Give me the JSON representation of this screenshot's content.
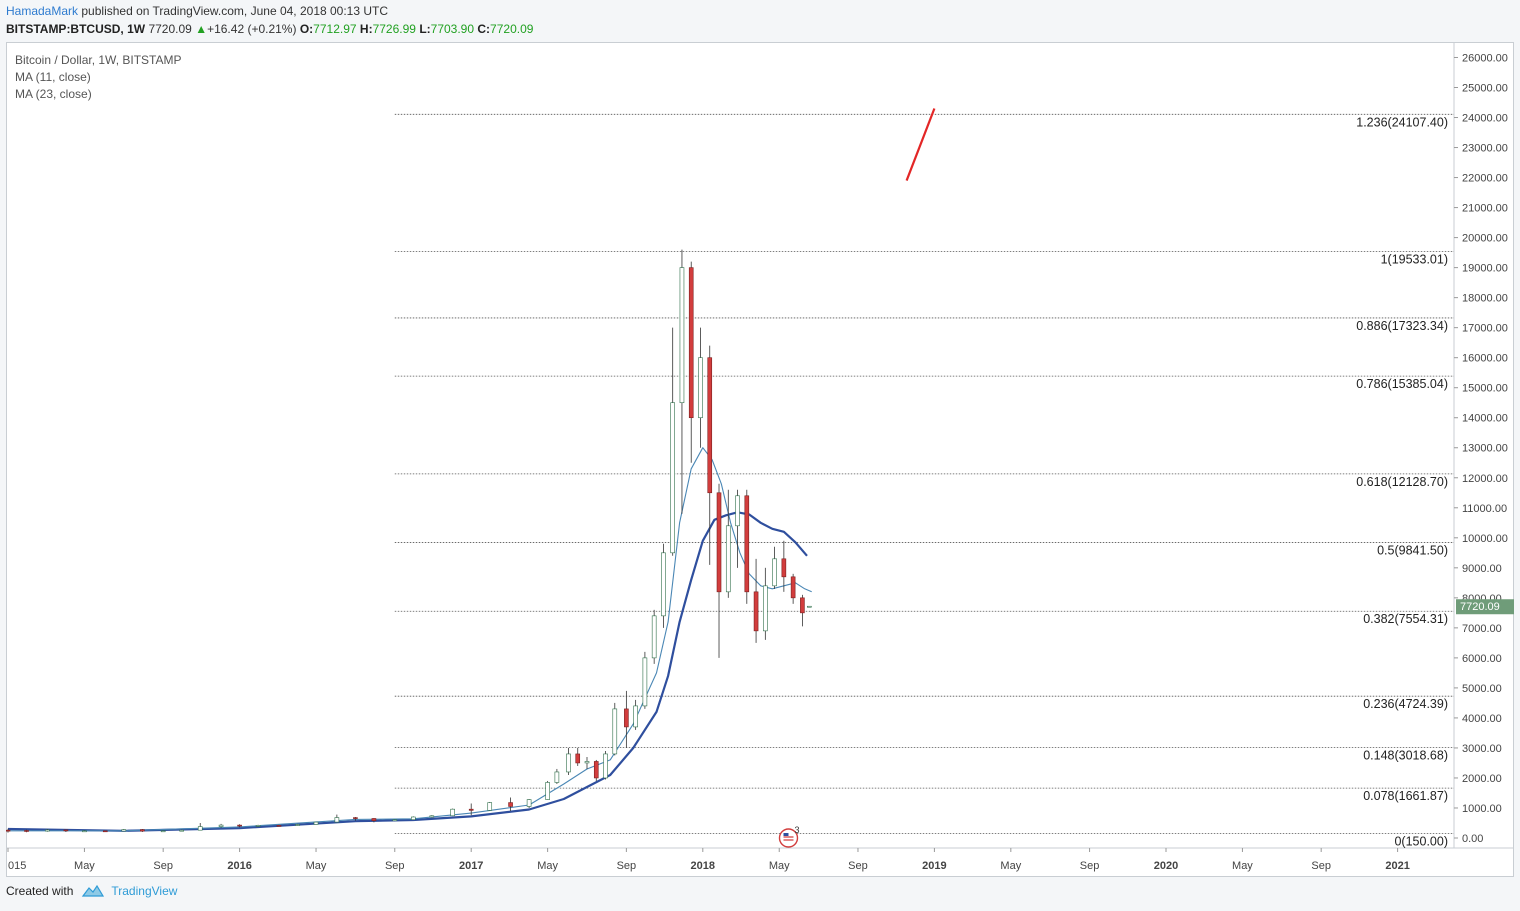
{
  "header": {
    "author": "HamadaMark",
    "published": "published on TradingView.com, June 04, 2018 00:13 UTC",
    "symbol": "BITSTAMP:BTCUSD, 1W",
    "last": "7720.09",
    "change": "+16.42 (+0.21%)",
    "o_label": "O:",
    "o_value": "7712.97",
    "h_label": "H:",
    "h_value": "7726.99",
    "l_label": "L:",
    "l_value": "7703.90",
    "c_label": "C:",
    "c_value": "7720.09"
  },
  "legend": {
    "title": "Bitcoin / Dollar, 1W, BITSTAMP",
    "ma1": "MA (11, close)",
    "ma2": "MA (23, close)"
  },
  "footer": {
    "created_with": "Created with",
    "brand": "TradingView"
  },
  "colors": {
    "up_candle": "#2f9a6a",
    "down_candle": "#d23d3d",
    "ma_fast": "#4a87b5",
    "ma_slow": "#2f4f9e",
    "fib_line": "#555555",
    "trend_line": "#e32626",
    "price_tag": "#6f9c79"
  },
  "chart_data": {
    "type": "candlestick",
    "symbol": "BITSTAMP:BTCUSD",
    "timeframe": "1W",
    "ylim": [
      0,
      26500
    ],
    "price_axis_ticks": [
      0,
      1000,
      2000,
      3000,
      4000,
      5000,
      6000,
      7000,
      8000,
      9000,
      10000,
      11000,
      12000,
      13000,
      14000,
      15000,
      16000,
      17000,
      18000,
      19000,
      20000,
      21000,
      22000,
      23000,
      24000,
      25000,
      26000
    ],
    "time_axis_labels": [
      "015",
      "May",
      "Sep",
      "2016",
      "May",
      "Sep",
      "2017",
      "May",
      "Sep",
      "2018",
      "May",
      "Sep",
      "2019",
      "May",
      "Sep",
      "2020",
      "May",
      "Sep",
      "2021"
    ],
    "time_axis_bold": [
      "2016",
      "2017",
      "2018",
      "2019",
      "2020",
      "2021"
    ],
    "time_axis_x": [
      2015.0,
      2015.33,
      2015.67,
      2016.0,
      2016.33,
      2016.67,
      2017.0,
      2017.33,
      2017.67,
      2018.0,
      2018.33,
      2018.67,
      2019.0,
      2019.33,
      2019.67,
      2020.0,
      2020.33,
      2020.67,
      2021.0
    ],
    "last_price": 7720.09,
    "fib_levels": [
      {
        "ratio": "1.236",
        "price": 24107.4
      },
      {
        "ratio": "1",
        "price": 19533.01
      },
      {
        "ratio": "0.886",
        "price": 17323.34
      },
      {
        "ratio": "0.786",
        "price": 15385.04
      },
      {
        "ratio": "0.618",
        "price": 12128.7
      },
      {
        "ratio": "0.5",
        "price": 9841.5
      },
      {
        "ratio": "0.382",
        "price": 7554.31
      },
      {
        "ratio": "0.236",
        "price": 4724.39
      },
      {
        "ratio": "0.148",
        "price": 3018.68
      },
      {
        "ratio": "0.078",
        "price": 1661.87
      },
      {
        "ratio": "0",
        "price": 150.0
      }
    ],
    "fib_start_x": 2016.67,
    "trend_line": {
      "x": [
        2018.88,
        2019.0
      ],
      "y": [
        21900,
        24300
      ]
    },
    "event_marker": {
      "x": 2018.37,
      "count": "3"
    },
    "candles": [
      {
        "x": 2015.0,
        "o": 260,
        "h": 310,
        "l": 180,
        "c": 250
      },
      {
        "x": 2015.08,
        "o": 250,
        "h": 280,
        "l": 190,
        "c": 230
      },
      {
        "x": 2015.17,
        "o": 230,
        "h": 300,
        "l": 210,
        "c": 270
      },
      {
        "x": 2015.25,
        "o": 270,
        "h": 280,
        "l": 200,
        "c": 240
      },
      {
        "x": 2015.33,
        "o": 240,
        "h": 260,
        "l": 220,
        "c": 240
      },
      {
        "x": 2015.42,
        "o": 240,
        "h": 250,
        "l": 220,
        "c": 230
      },
      {
        "x": 2015.5,
        "o": 230,
        "h": 300,
        "l": 220,
        "c": 280
      },
      {
        "x": 2015.58,
        "o": 280,
        "h": 300,
        "l": 200,
        "c": 230
      },
      {
        "x": 2015.67,
        "o": 230,
        "h": 250,
        "l": 220,
        "c": 240
      },
      {
        "x": 2015.75,
        "o": 240,
        "h": 280,
        "l": 230,
        "c": 260
      },
      {
        "x": 2015.83,
        "o": 260,
        "h": 500,
        "l": 250,
        "c": 380
      },
      {
        "x": 2015.92,
        "o": 380,
        "h": 470,
        "l": 340,
        "c": 430
      },
      {
        "x": 2016.0,
        "o": 430,
        "h": 460,
        "l": 360,
        "c": 410
      },
      {
        "x": 2016.08,
        "o": 410,
        "h": 440,
        "l": 370,
        "c": 420
      },
      {
        "x": 2016.17,
        "o": 420,
        "h": 440,
        "l": 400,
        "c": 415
      },
      {
        "x": 2016.25,
        "o": 415,
        "h": 470,
        "l": 410,
        "c": 450
      },
      {
        "x": 2016.33,
        "o": 450,
        "h": 540,
        "l": 440,
        "c": 530
      },
      {
        "x": 2016.42,
        "o": 530,
        "h": 780,
        "l": 520,
        "c": 680
      },
      {
        "x": 2016.5,
        "o": 680,
        "h": 700,
        "l": 580,
        "c": 650
      },
      {
        "x": 2016.58,
        "o": 650,
        "h": 660,
        "l": 520,
        "c": 575
      },
      {
        "x": 2016.67,
        "o": 575,
        "h": 620,
        "l": 560,
        "c": 610
      },
      {
        "x": 2016.75,
        "o": 610,
        "h": 720,
        "l": 600,
        "c": 700
      },
      {
        "x": 2016.83,
        "o": 700,
        "h": 760,
        "l": 680,
        "c": 740
      },
      {
        "x": 2016.92,
        "o": 740,
        "h": 980,
        "l": 730,
        "c": 960
      },
      {
        "x": 2017.0,
        "o": 960,
        "h": 1150,
        "l": 760,
        "c": 920
      },
      {
        "x": 2017.08,
        "o": 920,
        "h": 1200,
        "l": 900,
        "c": 1180
      },
      {
        "x": 2017.17,
        "o": 1180,
        "h": 1350,
        "l": 900,
        "c": 1050
      },
      {
        "x": 2017.25,
        "o": 1050,
        "h": 1300,
        "l": 1000,
        "c": 1280
      },
      {
        "x": 2017.33,
        "o": 1280,
        "h": 1900,
        "l": 1270,
        "c": 1850
      },
      {
        "x": 2017.37,
        "o": 1850,
        "h": 2300,
        "l": 1800,
        "c": 2200
      },
      {
        "x": 2017.42,
        "o": 2200,
        "h": 3000,
        "l": 2100,
        "c": 2800
      },
      {
        "x": 2017.46,
        "o": 2800,
        "h": 3000,
        "l": 2400,
        "c": 2500
      },
      {
        "x": 2017.5,
        "o": 2500,
        "h": 2700,
        "l": 2300,
        "c": 2550
      },
      {
        "x": 2017.54,
        "o": 2550,
        "h": 2600,
        "l": 1900,
        "c": 2000
      },
      {
        "x": 2017.58,
        "o": 2000,
        "h": 2900,
        "l": 1950,
        "c": 2800
      },
      {
        "x": 2017.62,
        "o": 2800,
        "h": 4500,
        "l": 2750,
        "c": 4300
      },
      {
        "x": 2017.67,
        "o": 4300,
        "h": 4900,
        "l": 3000,
        "c": 3700
      },
      {
        "x": 2017.71,
        "o": 3700,
        "h": 4600,
        "l": 3600,
        "c": 4400
      },
      {
        "x": 2017.75,
        "o": 4400,
        "h": 6200,
        "l": 4300,
        "c": 6000
      },
      {
        "x": 2017.79,
        "o": 6000,
        "h": 7600,
        "l": 5800,
        "c": 7400
      },
      {
        "x": 2017.83,
        "o": 7400,
        "h": 9800,
        "l": 7000,
        "c": 9500
      },
      {
        "x": 2017.87,
        "o": 9500,
        "h": 17000,
        "l": 9400,
        "c": 14500
      },
      {
        "x": 2017.91,
        "o": 14500,
        "h": 19600,
        "l": 10800,
        "c": 19000
      },
      {
        "x": 2017.95,
        "o": 19000,
        "h": 19200,
        "l": 12500,
        "c": 14000
      },
      {
        "x": 2017.99,
        "o": 14000,
        "h": 17000,
        "l": 13000,
        "c": 16000
      },
      {
        "x": 2018.03,
        "o": 16000,
        "h": 16400,
        "l": 9100,
        "c": 11500
      },
      {
        "x": 2018.07,
        "o": 11500,
        "h": 11800,
        "l": 6000,
        "c": 8200
      },
      {
        "x": 2018.11,
        "o": 8200,
        "h": 11600,
        "l": 8000,
        "c": 10400
      },
      {
        "x": 2018.15,
        "o": 10400,
        "h": 11600,
        "l": 9000,
        "c": 11400
      },
      {
        "x": 2018.19,
        "o": 11400,
        "h": 11600,
        "l": 7800,
        "c": 8200
      },
      {
        "x": 2018.23,
        "o": 8200,
        "h": 9300,
        "l": 6500,
        "c": 6900
      },
      {
        "x": 2018.27,
        "o": 6900,
        "h": 9000,
        "l": 6600,
        "c": 8400
      },
      {
        "x": 2018.31,
        "o": 8400,
        "h": 9700,
        "l": 8300,
        "c": 9300
      },
      {
        "x": 2018.35,
        "o": 9300,
        "h": 9900,
        "l": 8200,
        "c": 8700
      },
      {
        "x": 2018.39,
        "o": 8700,
        "h": 8800,
        "l": 7800,
        "c": 8000
      },
      {
        "x": 2018.43,
        "o": 8000,
        "h": 8100,
        "l": 7050,
        "c": 7500
      },
      {
        "x": 2018.46,
        "o": 7712.97,
        "h": 7726.99,
        "l": 7703.9,
        "c": 7720.09
      }
    ],
    "ma_fast_series": {
      "x": [
        2015.0,
        2015.5,
        2016.0,
        2016.5,
        2016.75,
        2017.0,
        2017.25,
        2017.4,
        2017.5,
        2017.6,
        2017.7,
        2017.8,
        2017.85,
        2017.9,
        2017.95,
        2018.0,
        2018.04,
        2018.08,
        2018.12,
        2018.16,
        2018.2,
        2018.25,
        2018.3,
        2018.35,
        2018.4,
        2018.44,
        2018.47
      ],
      "y": [
        240,
        240,
        370,
        620,
        640,
        830,
        1100,
        1800,
        2300,
        2600,
        3800,
        5500,
        7200,
        10500,
        12300,
        13000,
        12600,
        11800,
        10500,
        9500,
        8800,
        8400,
        8300,
        8400,
        8500,
        8300,
        8200
      ]
    },
    "ma_slow_series": {
      "x": [
        2015.0,
        2015.5,
        2016.0,
        2016.5,
        2016.75,
        2017.0,
        2017.25,
        2017.4,
        2017.5,
        2017.6,
        2017.7,
        2017.8,
        2017.85,
        2017.9,
        2017.95,
        2018.0,
        2018.05,
        2018.1,
        2018.15,
        2018.2,
        2018.25,
        2018.3,
        2018.35,
        2018.4,
        2018.45
      ],
      "y": [
        300,
        240,
        330,
        560,
        600,
        720,
        950,
        1300,
        1700,
        2100,
        3000,
        4200,
        5400,
        7200,
        8600,
        9900,
        10600,
        10750,
        10850,
        10780,
        10500,
        10300,
        10200,
        9850,
        9400
      ]
    }
  }
}
